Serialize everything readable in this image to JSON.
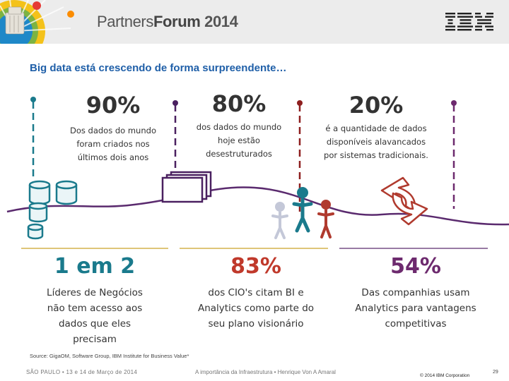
{
  "header": {
    "brand_main": "Partners",
    "brand_bold": "Forum",
    "brand_year": "2014",
    "logo_alt": "IBM"
  },
  "slide": {
    "title": "Big data está crescendo de forma surpreendente…",
    "top_stats": [
      {
        "value": "90%",
        "line1": "Dos dados do mundo",
        "line2": "foram criados nos",
        "line3": "últimos dois anos",
        "color": "#111111"
      },
      {
        "value": "80%",
        "line1": "dos dados do mundo",
        "line2": "hoje estão",
        "line3": "desestruturados",
        "color": "#111111"
      },
      {
        "value": "20%",
        "line1": "é a quantidade de dados",
        "line2": "disponíveis alavancados",
        "line3": "por sistemas tradicionais.",
        "color": "#111111"
      }
    ],
    "bottom_stats": [
      {
        "value": "1 em 2",
        "line1": "Líderes de Negócios",
        "line2": "não tem acesso aos",
        "line3": "dados que eles",
        "line4": "precisam",
        "color": "#1a7a8c"
      },
      {
        "value": "83%",
        "line1": "dos CIO's citam BI e",
        "line2": "Analytics como parte do",
        "line3": "seu plano visionário",
        "line4": "",
        "color": "#c0392b"
      },
      {
        "value": "54%",
        "line1": "Das companhias usam",
        "line2": "Analytics para vantagens",
        "line3": "competitivas",
        "line4": "",
        "color": "#6d2a6e"
      }
    ],
    "source": "Source: GigaOM, Software Group, IBM Institute for Business Value*"
  },
  "footer": {
    "left": "SÃO PAULO  •  13 e 14 de Março de 2014",
    "middle": "A importância da Infraestrutura  •  Henrique Von A Amaral",
    "copyright": "© 2014 IBM Corporation",
    "page": "29"
  },
  "colors": {
    "teal": "#1a7a8c",
    "purple": "#4a2060",
    "red": "#8e1f1f",
    "title_blue": "#1f5fa8"
  }
}
